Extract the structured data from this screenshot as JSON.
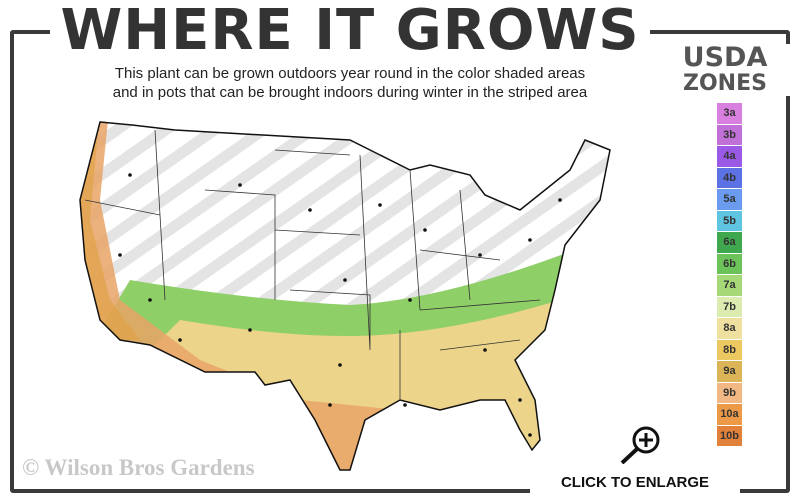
{
  "header": {
    "title": "WHERE IT GROWS",
    "subtitle_line1": "This plant can be grown outdoors year round in the color shaded areas",
    "subtitle_line2": "and in pots that can be brought indoors during winter in the striped area"
  },
  "legend": {
    "title_line1": "USDA",
    "title_line2": "ZONES",
    "zones": [
      {
        "label": "3a",
        "color": "#d97fe0"
      },
      {
        "label": "3b",
        "color": "#c070d6"
      },
      {
        "label": "4a",
        "color": "#9a5ae6"
      },
      {
        "label": "4b",
        "color": "#5c72e4"
      },
      {
        "label": "5a",
        "color": "#6a9bee"
      },
      {
        "label": "5b",
        "color": "#5ec4e0"
      },
      {
        "label": "6a",
        "color": "#3fa84f"
      },
      {
        "label": "6b",
        "color": "#6cc35a"
      },
      {
        "label": "7a",
        "color": "#a6d878"
      },
      {
        "label": "7b",
        "color": "#dcecb0"
      },
      {
        "label": "8a",
        "color": "#f0e0a0"
      },
      {
        "label": "8b",
        "color": "#ecc860"
      },
      {
        "label": "9a",
        "color": "#dcb458"
      },
      {
        "label": "9b",
        "color": "#f2b884"
      },
      {
        "label": "10a",
        "color": "#ec9a48"
      },
      {
        "label": "10b",
        "color": "#e2823a"
      }
    ]
  },
  "footer": {
    "copyright": "© Wilson Bros Gardens",
    "enlarge_label": "CLICK TO ENLARGE"
  },
  "icons": {
    "enlarge": "magnifier-plus-icon"
  }
}
